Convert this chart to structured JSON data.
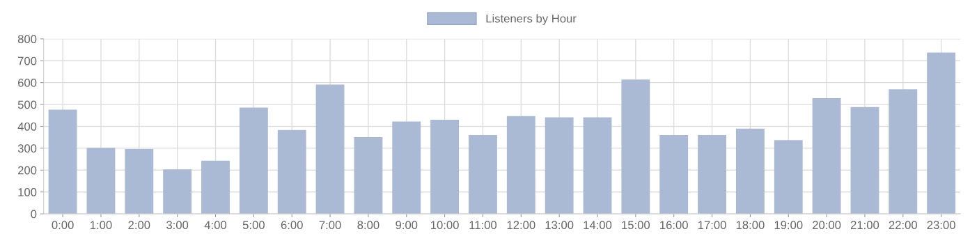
{
  "chart_data": {
    "type": "bar",
    "categories": [
      "0:00",
      "1:00",
      "2:00",
      "3:00",
      "4:00",
      "5:00",
      "6:00",
      "7:00",
      "8:00",
      "9:00",
      "10:00",
      "11:00",
      "12:00",
      "13:00",
      "14:00",
      "15:00",
      "16:00",
      "17:00",
      "18:00",
      "19:00",
      "20:00",
      "21:00",
      "22:00",
      "23:00"
    ],
    "series": [
      {
        "name": "Listeners by Hour",
        "color": "#abbad4",
        "values": [
          474,
          300,
          294,
          201,
          241,
          484,
          381,
          589,
          348,
          420,
          428,
          358,
          445,
          439,
          439,
          612,
          358,
          358,
          387,
          335,
          527,
          486,
          567,
          735
        ]
      }
    ],
    "ylim": [
      0,
      800
    ],
    "yticks": [
      0,
      100,
      200,
      300,
      400,
      500,
      600,
      700,
      800
    ],
    "grid": true,
    "legend": "top"
  }
}
